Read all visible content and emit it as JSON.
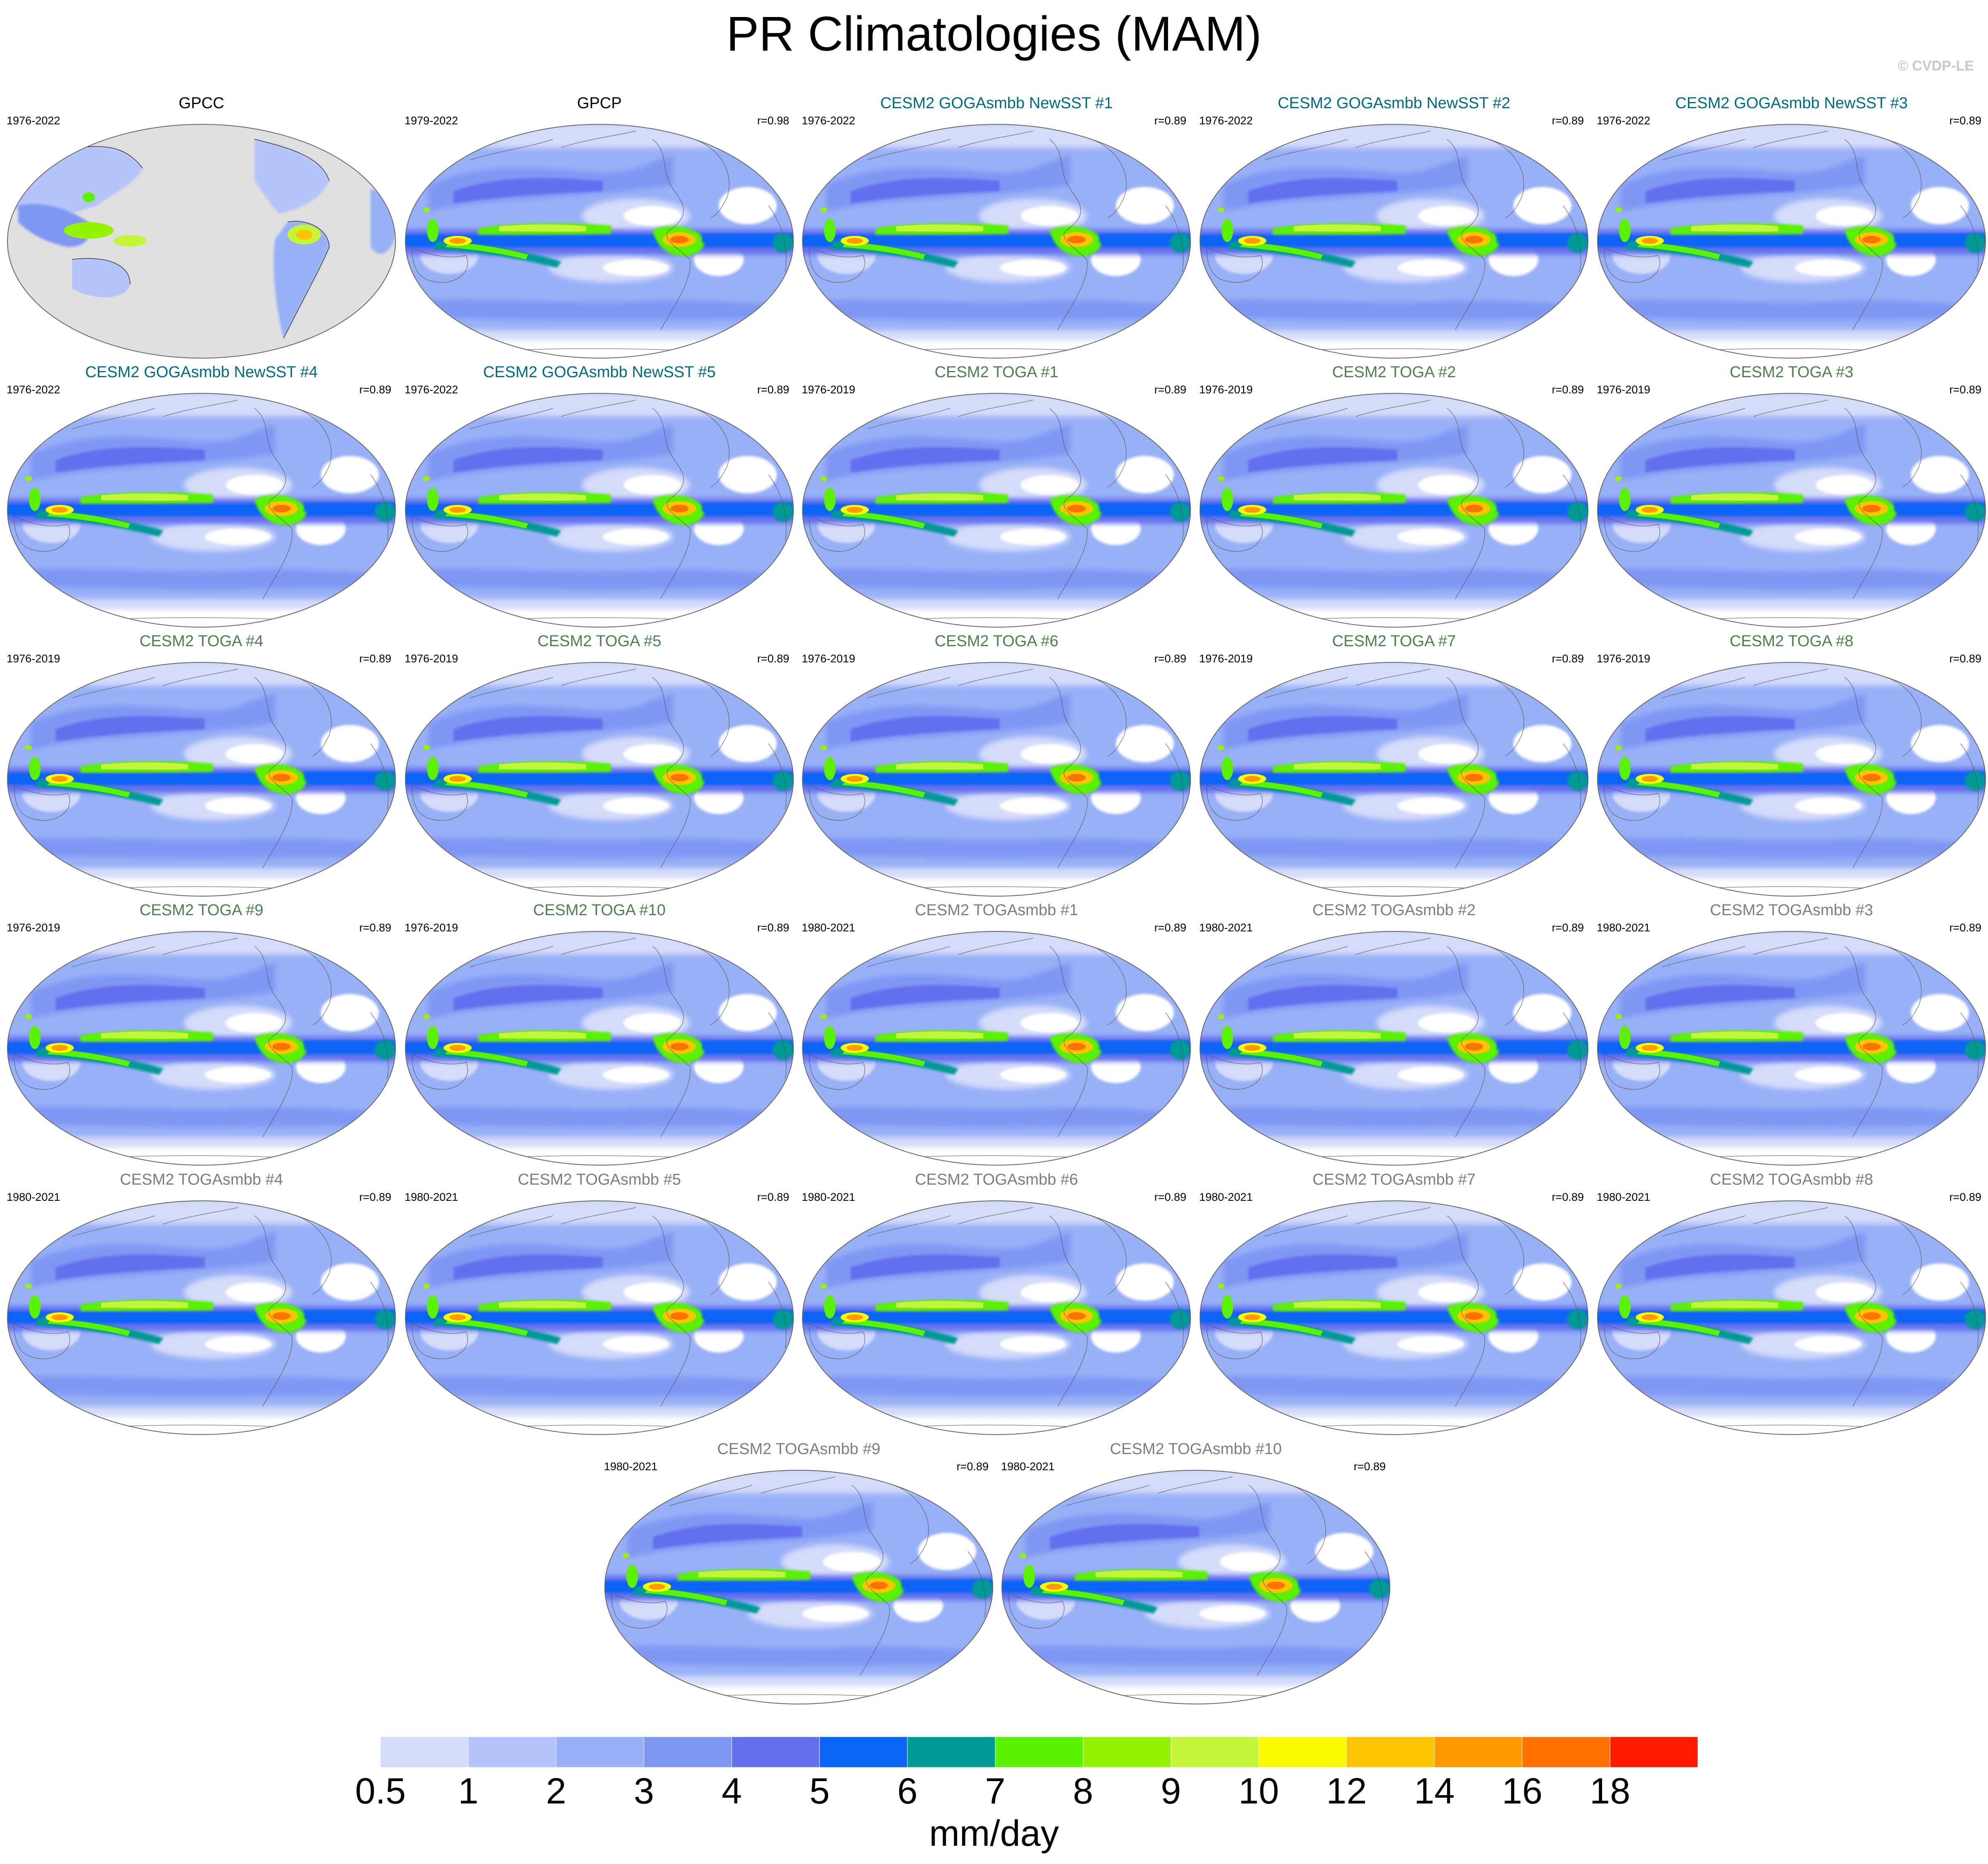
{
  "title": "PR Climatologies (MAM)",
  "credit": "© CVDP-LE",
  "colors": {
    "gogas": "#006a80",
    "toga": "#4e7f4e",
    "togasmbb": "#7d7d7d",
    "obs": "#000000",
    "land_fill": "#e0e0e0",
    "coast": "#555555"
  },
  "panels": [
    {
      "title": "GPCC",
      "years": "1976-2022",
      "r": "",
      "group": "obs",
      "style": "gpcc"
    },
    {
      "title": "GPCP",
      "years": "1979-2022",
      "r": "r=0.98",
      "group": "obs",
      "style": "gpcp"
    },
    {
      "title": "CESM2 GOGAsmbb NewSST #1",
      "years": "1976-2022",
      "r": "r=0.89",
      "group": "gogas",
      "style": "model"
    },
    {
      "title": "CESM2 GOGAsmbb NewSST #2",
      "years": "1976-2022",
      "r": "r=0.89",
      "group": "gogas",
      "style": "model"
    },
    {
      "title": "CESM2 GOGAsmbb NewSST #3",
      "years": "1976-2022",
      "r": "r=0.89",
      "group": "gogas",
      "style": "model"
    },
    {
      "title": "CESM2 GOGAsmbb NewSST #4",
      "years": "1976-2022",
      "r": "r=0.89",
      "group": "gogas",
      "style": "model"
    },
    {
      "title": "CESM2 GOGAsmbb NewSST #5",
      "years": "1976-2022",
      "r": "r=0.89",
      "group": "gogas",
      "style": "model"
    },
    {
      "title": "CESM2 TOGA #1",
      "years": "1976-2019",
      "r": "r=0.89",
      "group": "toga",
      "style": "model"
    },
    {
      "title": "CESM2 TOGA #2",
      "years": "1976-2019",
      "r": "r=0.89",
      "group": "toga",
      "style": "model"
    },
    {
      "title": "CESM2 TOGA #3",
      "years": "1976-2019",
      "r": "r=0.89",
      "group": "toga",
      "style": "model"
    },
    {
      "title": "CESM2 TOGA #4",
      "years": "1976-2019",
      "r": "r=0.89",
      "group": "toga",
      "style": "model"
    },
    {
      "title": "CESM2 TOGA #5",
      "years": "1976-2019",
      "r": "r=0.89",
      "group": "toga",
      "style": "model"
    },
    {
      "title": "CESM2 TOGA #6",
      "years": "1976-2019",
      "r": "r=0.89",
      "group": "toga",
      "style": "model"
    },
    {
      "title": "CESM2 TOGA #7",
      "years": "1976-2019",
      "r": "r=0.89",
      "group": "toga",
      "style": "model"
    },
    {
      "title": "CESM2 TOGA #8",
      "years": "1976-2019",
      "r": "r=0.89",
      "group": "toga",
      "style": "model"
    },
    {
      "title": "CESM2 TOGA #9",
      "years": "1976-2019",
      "r": "r=0.89",
      "group": "toga",
      "style": "model"
    },
    {
      "title": "CESM2 TOGA #10",
      "years": "1976-2019",
      "r": "r=0.89",
      "group": "toga",
      "style": "model"
    },
    {
      "title": "CESM2 TOGAsmbb #1",
      "years": "1980-2021",
      "r": "r=0.89",
      "group": "togasmbb",
      "style": "model"
    },
    {
      "title": "CESM2 TOGAsmbb #2",
      "years": "1980-2021",
      "r": "r=0.89",
      "group": "togasmbb",
      "style": "model"
    },
    {
      "title": "CESM2 TOGAsmbb #3",
      "years": "1980-2021",
      "r": "r=0.89",
      "group": "togasmbb",
      "style": "model"
    },
    {
      "title": "CESM2 TOGAsmbb #4",
      "years": "1980-2021",
      "r": "r=0.89",
      "group": "togasmbb",
      "style": "model"
    },
    {
      "title": "CESM2 TOGAsmbb #5",
      "years": "1980-2021",
      "r": "r=0.89",
      "group": "togasmbb",
      "style": "model"
    },
    {
      "title": "CESM2 TOGAsmbb #6",
      "years": "1980-2021",
      "r": "r=0.89",
      "group": "togasmbb",
      "style": "model"
    },
    {
      "title": "CESM2 TOGAsmbb #7",
      "years": "1980-2021",
      "r": "r=0.89",
      "group": "togasmbb",
      "style": "model"
    },
    {
      "title": "CESM2 TOGAsmbb #8",
      "years": "1980-2021",
      "r": "r=0.89",
      "group": "togasmbb",
      "style": "model"
    },
    {
      "title": "CESM2 TOGAsmbb #9",
      "years": "1980-2021",
      "r": "r=0.89",
      "group": "togasmbb",
      "style": "model"
    },
    {
      "title": "CESM2 TOGAsmbb #10",
      "years": "1980-2021",
      "r": "r=0.89",
      "group": "togasmbb",
      "style": "model"
    }
  ],
  "colorbar": {
    "units": "mm/day",
    "labels": [
      "0.5",
      "1",
      "2",
      "3",
      "4",
      "5",
      "6",
      "7",
      "8",
      "9",
      "10",
      "12",
      "14",
      "16",
      "18"
    ],
    "colors": [
      "#ffffff",
      "#d4dcfa",
      "#b5c4f9",
      "#98b0f6",
      "#7f97f3",
      "#6470ee",
      "#0a64f5",
      "#009a96",
      "#5af200",
      "#94f400",
      "#c4f53a",
      "#fafa00",
      "#ffc400",
      "#ff9a00",
      "#ff7200",
      "#ff1a00"
    ]
  }
}
